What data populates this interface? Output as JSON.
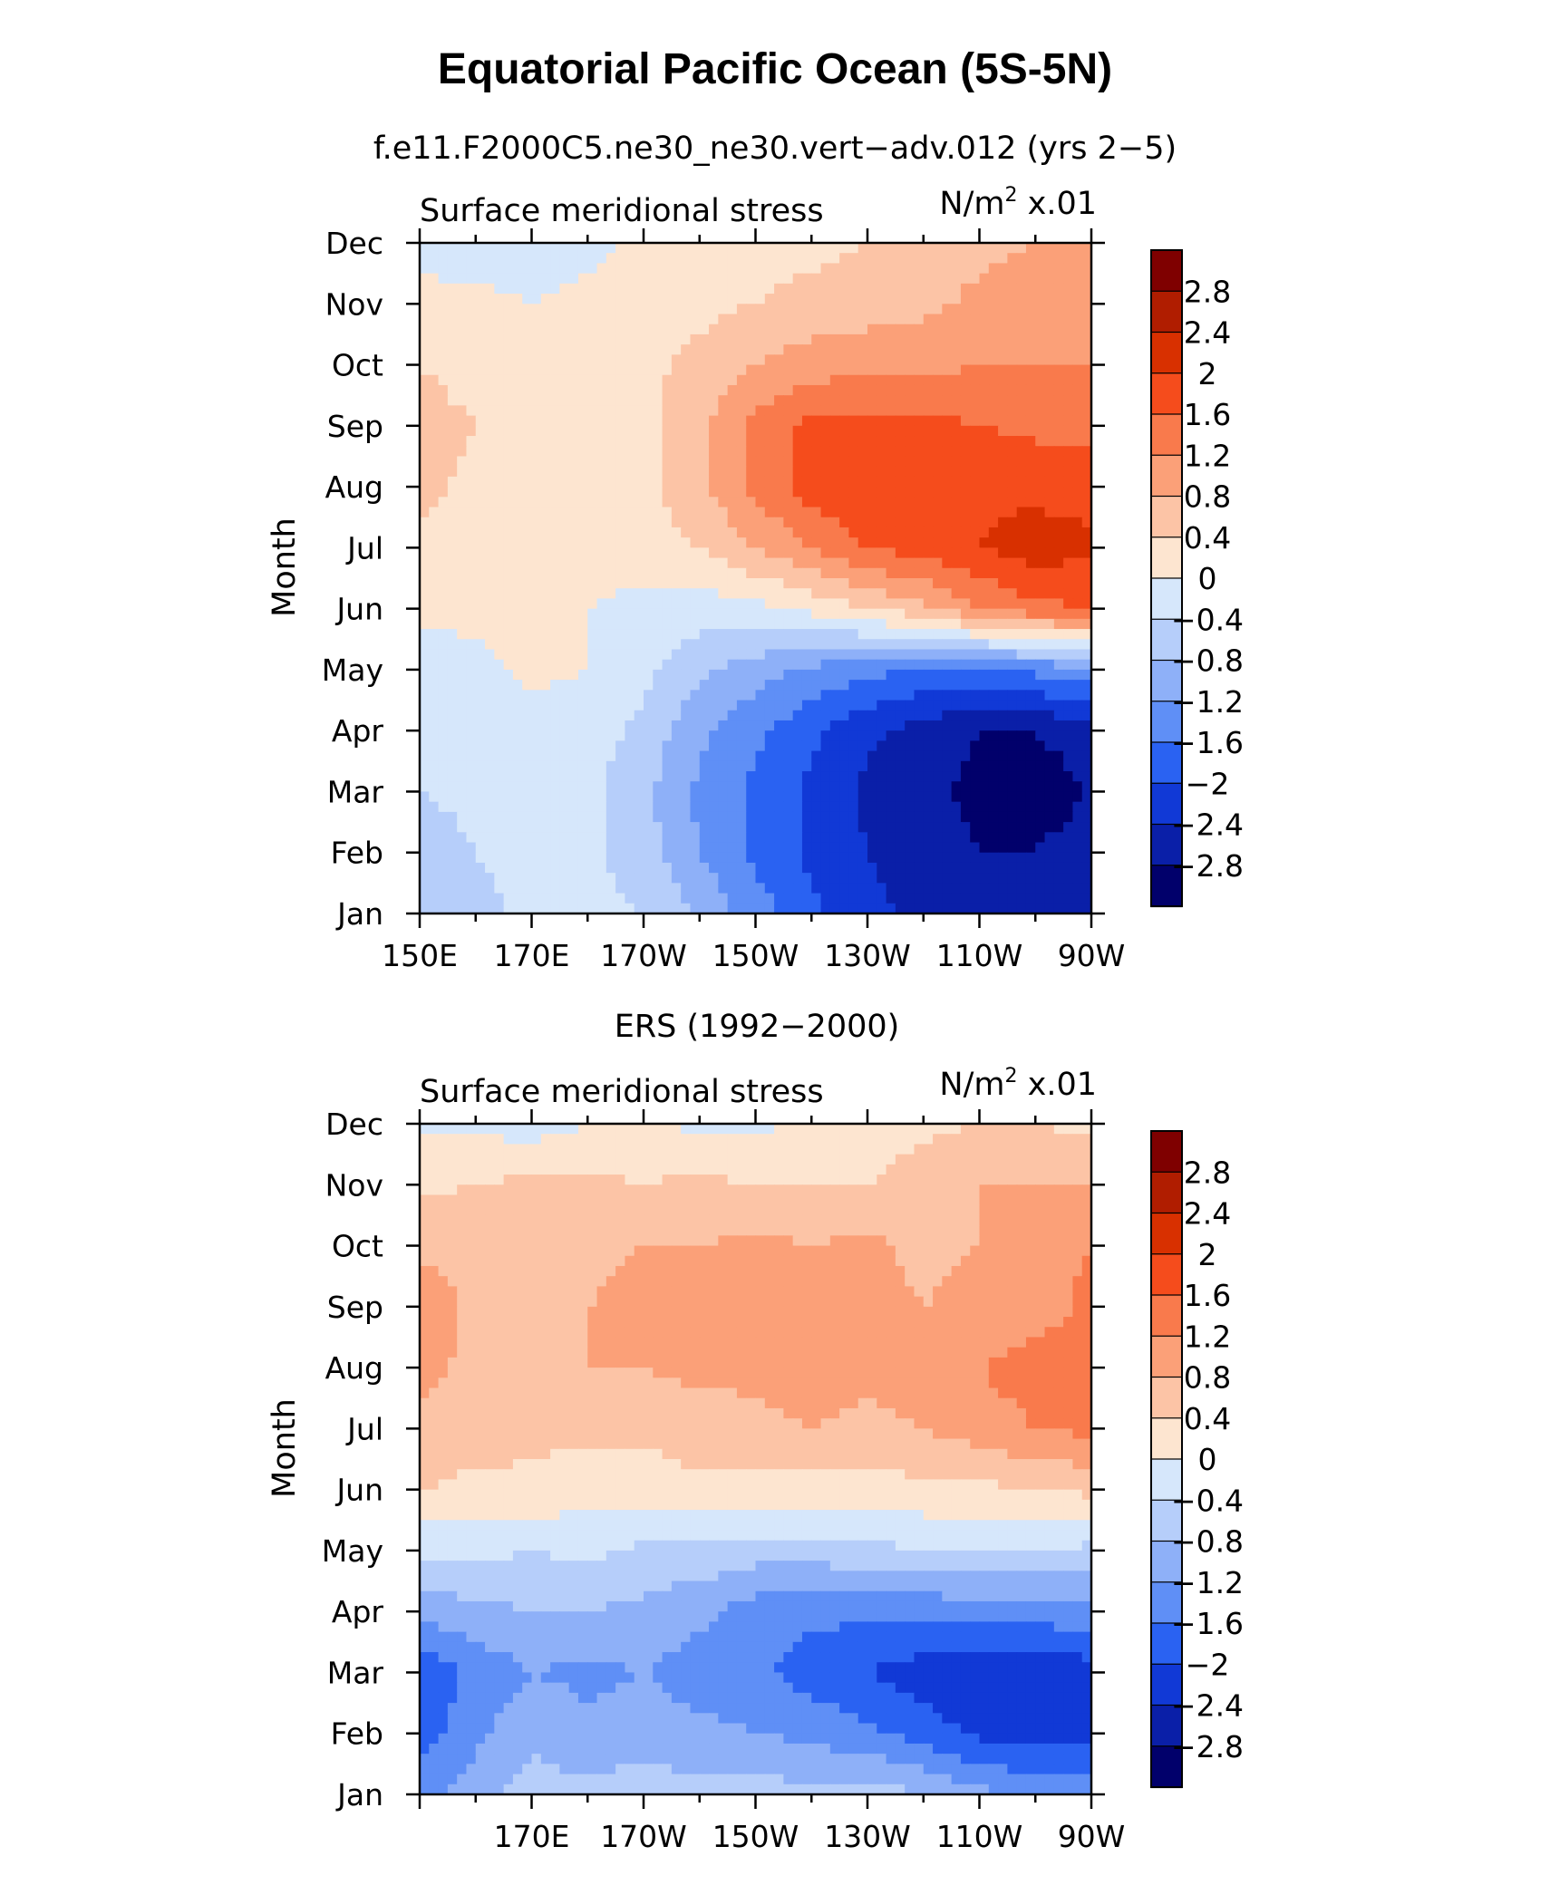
{
  "figure": {
    "title": "Equatorial Pacific Ocean (5S-5N)"
  },
  "colorbar": {
    "labels": [
      "2.8",
      "2.4",
      "2",
      "1.6",
      "1.2",
      "0.8",
      "0.4",
      "0",
      "−0.4",
      "−0.8",
      "−1.2",
      "−1.6",
      "−2",
      "−2.4",
      "−2.8"
    ],
    "colors": [
      "#7f0000",
      "#b01d00",
      "#d83000",
      "#f54c1c",
      "#f97a4c",
      "#fba078",
      "#fcc4a6",
      "#fde5d0",
      "#d6e7fb",
      "#b6cefa",
      "#8eb0f8",
      "#5f8ff6",
      "#2a62f2",
      "#1139d6",
      "#0a1fa8",
      "#01006b"
    ]
  },
  "chart_data": [
    {
      "type": "heatmap",
      "title": "f.e11.F2000C5.ne30_ne30.vert−adv.012 (yrs 2−5)",
      "left_label": "Surface meridional stress",
      "right_label_base": "N/m",
      "right_label_exp": "2",
      "right_label_suffix": " x.01",
      "ylabel": "Month",
      "xlabel": "",
      "x_ticks": [
        "150E",
        "170E",
        "170W",
        "150W",
        "130W",
        "110W",
        "90W"
      ],
      "y_ticks": [
        "Jan",
        "Feb",
        "Mar",
        "Apr",
        "May",
        "Jun",
        "Jul",
        "Aug",
        "Sep",
        "Oct",
        "Nov",
        "Dec"
      ],
      "x_range_deg_east": [
        150,
        270
      ],
      "y_range_months": [
        1,
        12
      ],
      "units": "N/m^2 x.01",
      "levels": [
        -2.8,
        -2.4,
        -2.0,
        -1.6,
        -1.2,
        -0.8,
        -0.4,
        0,
        0.4,
        0.8,
        1.2,
        1.6,
        2.0,
        2.4,
        2.8
      ],
      "x": [
        150,
        160,
        170,
        180,
        190,
        200,
        210,
        220,
        230,
        240,
        250,
        260,
        270
      ],
      "y": [
        1,
        2,
        3,
        4,
        5,
        6,
        7,
        8,
        9,
        10,
        11,
        12
      ],
      "z": [
        [
          -0.7,
          -0.5,
          -0.3,
          -0.3,
          -0.4,
          -0.9,
          -1.4,
          -1.9,
          -2.3,
          -2.5,
          -2.5,
          -2.5,
          -2.4
        ],
        [
          -0.6,
          -0.4,
          -0.3,
          -0.3,
          -0.6,
          -1.2,
          -1.7,
          -2.1,
          -2.4,
          -2.6,
          -2.8,
          -2.8,
          -2.6
        ],
        [
          -0.4,
          -0.3,
          -0.3,
          -0.3,
          -0.7,
          -1.3,
          -1.7,
          -2.1,
          -2.5,
          -2.7,
          -2.9,
          -3.0,
          -2.8
        ],
        [
          -0.3,
          -0.2,
          -0.2,
          -0.2,
          -0.5,
          -1.1,
          -1.5,
          -1.9,
          -2.3,
          -2.6,
          -2.8,
          -2.8,
          -2.6
        ],
        [
          -0.2,
          -0.1,
          0.1,
          0.0,
          -0.3,
          -0.7,
          -1.0,
          -1.3,
          -1.5,
          -1.6,
          -1.6,
          -1.5,
          -1.3
        ],
        [
          0.1,
          0.1,
          0.1,
          0.0,
          -0.1,
          -0.2,
          -0.1,
          0.1,
          0.4,
          0.7,
          1.2,
          1.5,
          1.6
        ],
        [
          0.3,
          0.2,
          0.2,
          0.1,
          0.2,
          0.4,
          0.8,
          1.2,
          1.6,
          1.8,
          2.0,
          2.2,
          2.1
        ],
        [
          0.5,
          0.3,
          0.2,
          0.1,
          0.3,
          0.7,
          1.3,
          1.8,
          2.0,
          2.0,
          1.9,
          1.9,
          1.8
        ],
        [
          0.6,
          0.4,
          0.3,
          0.2,
          0.3,
          0.7,
          1.3,
          1.7,
          1.7,
          1.7,
          1.6,
          1.5,
          1.5
        ],
        [
          0.4,
          0.2,
          0.2,
          0.1,
          0.3,
          0.5,
          0.8,
          1.0,
          1.1,
          1.1,
          1.2,
          1.2,
          1.2
        ],
        [
          0.1,
          0.1,
          0.0,
          0.1,
          0.2,
          0.3,
          0.4,
          0.5,
          0.6,
          0.7,
          0.9,
          1.0,
          1.0
        ],
        [
          -0.1,
          -0.2,
          -0.2,
          -0.1,
          0.1,
          0.2,
          0.3,
          0.3,
          0.4,
          0.5,
          0.7,
          0.8,
          0.8
        ]
      ]
    },
    {
      "type": "heatmap",
      "title": "ERS (1992−2000)",
      "left_label": "Surface meridional stress",
      "right_label_base": "N/m",
      "right_label_exp": "2",
      "right_label_suffix": " x.01",
      "ylabel": "Month",
      "xlabel": "",
      "x_ticks": [
        "170E",
        "170W",
        "150W",
        "130W",
        "110W",
        "90W"
      ],
      "y_ticks": [
        "Jan",
        "Feb",
        "Mar",
        "Apr",
        "May",
        "Jun",
        "Jul",
        "Aug",
        "Sep",
        "Oct",
        "Nov",
        "Dec"
      ],
      "x_range_deg_east": [
        150,
        270
      ],
      "y_range_months": [
        1,
        12
      ],
      "units": "N/m^2 x.01",
      "levels": [
        -2.8,
        -2.4,
        -2.0,
        -1.6,
        -1.2,
        -0.8,
        -0.4,
        0,
        0.4,
        0.8,
        1.2,
        1.6,
        2.0,
        2.4,
        2.8
      ],
      "x": [
        150,
        160,
        170,
        180,
        190,
        200,
        210,
        220,
        230,
        240,
        250,
        260,
        270
      ],
      "y": [
        1,
        2,
        3,
        4,
        5,
        6,
        7,
        8,
        9,
        10,
        11,
        12
      ],
      "z": [
        [
          -1.4,
          -1.0,
          -0.6,
          -0.7,
          -0.5,
          -0.7,
          -0.6,
          -0.7,
          -0.6,
          -0.8,
          -1.1,
          -1.3,
          -1.3
        ],
        [
          -1.8,
          -1.3,
          -0.9,
          -1.1,
          -1.0,
          -1.1,
          -1.2,
          -1.3,
          -1.5,
          -1.8,
          -2.1,
          -2.2,
          -2.1
        ],
        [
          -1.9,
          -1.5,
          -1.2,
          -1.3,
          -1.2,
          -1.4,
          -1.5,
          -1.8,
          -2.0,
          -2.2,
          -2.3,
          -2.4,
          -2.2
        ],
        [
          -1.1,
          -0.9,
          -0.8,
          -0.8,
          -0.9,
          -1.1,
          -1.4,
          -1.5,
          -1.5,
          -1.5,
          -1.4,
          -1.4,
          -1.3
        ],
        [
          -0.3,
          -0.3,
          -0.4,
          -0.3,
          -0.5,
          -0.5,
          -0.6,
          -0.6,
          -0.5,
          -0.4,
          -0.4,
          -0.4,
          -0.5
        ],
        [
          0.4,
          0.3,
          0.3,
          0.2,
          0.2,
          0.3,
          0.3,
          0.2,
          0.2,
          0.3,
          0.3,
          0.4,
          0.5
        ],
        [
          0.7,
          0.6,
          0.5,
          0.5,
          0.5,
          0.6,
          0.7,
          0.8,
          0.7,
          0.8,
          1.0,
          1.2,
          1.3
        ],
        [
          0.9,
          0.7,
          0.7,
          0.8,
          0.8,
          0.9,
          0.9,
          1.0,
          0.9,
          1.0,
          1.2,
          1.4,
          1.4
        ],
        [
          1.1,
          0.7,
          0.8,
          0.8,
          0.9,
          1.0,
          0.9,
          0.8,
          0.9,
          0.8,
          0.9,
          1.0,
          1.3
        ],
        [
          0.7,
          0.7,
          0.6,
          0.7,
          0.8,
          0.8,
          0.9,
          0.8,
          0.9,
          0.7,
          0.8,
          1.1,
          1.2
        ],
        [
          0.3,
          0.4,
          0.5,
          0.5,
          0.4,
          0.5,
          0.4,
          0.4,
          0.4,
          0.6,
          0.8,
          0.8,
          0.8
        ],
        [
          -0.1,
          -0.1,
          -0.2,
          0.0,
          0.1,
          -0.1,
          -0.1,
          0.1,
          0.2,
          0.3,
          0.4,
          0.4,
          0.3
        ]
      ]
    }
  ]
}
